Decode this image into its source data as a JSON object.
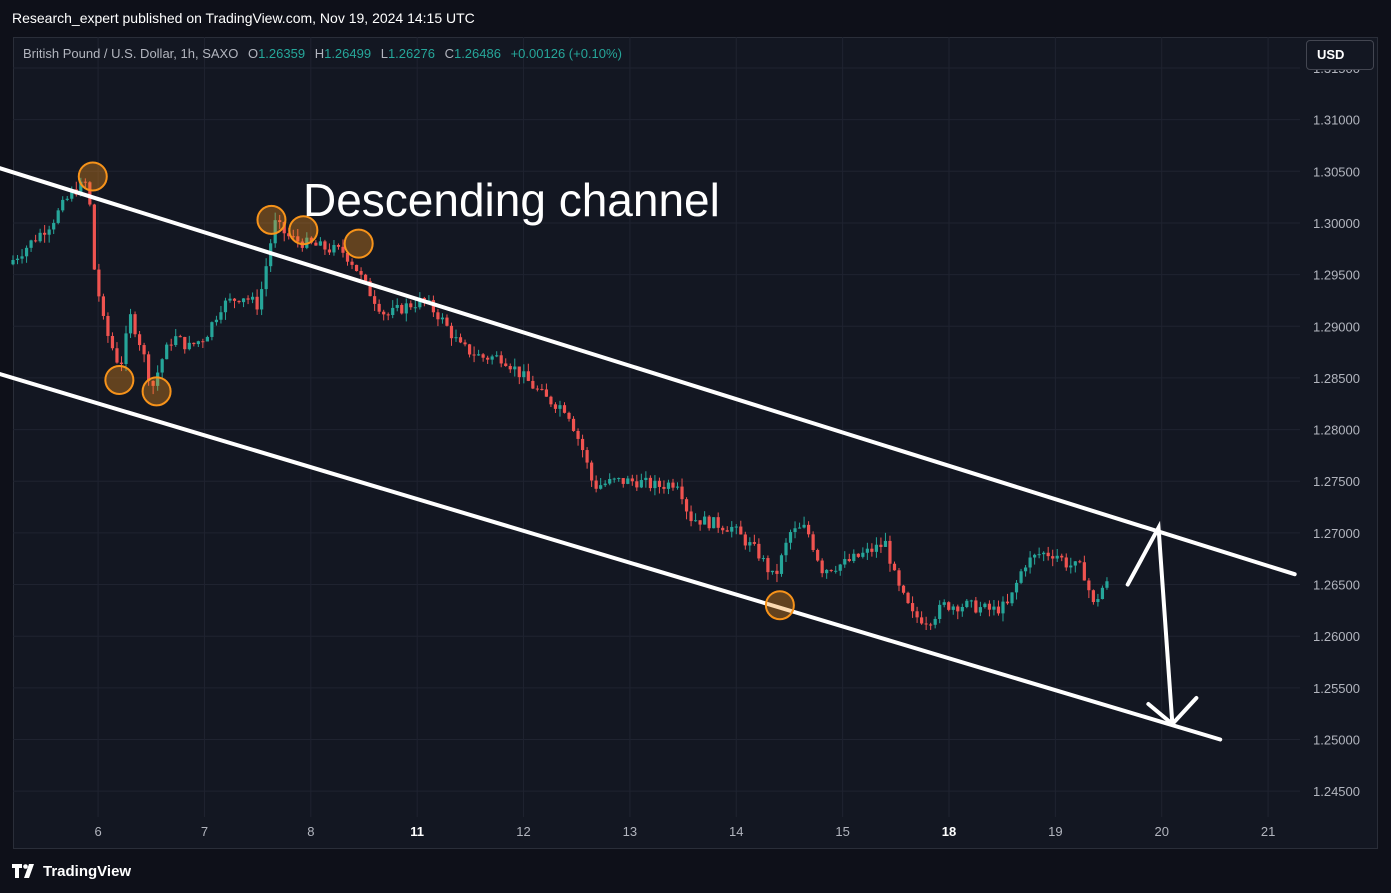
{
  "header": {
    "published": "Research_expert published on TradingView.com, Nov 19, 2024 14:15 UTC"
  },
  "legend": {
    "symbol": "British Pound / U.S. Dollar, 1h, SAXO",
    "o_label": "O",
    "o_value": "1.26359",
    "h_label": "H",
    "h_value": "1.26499",
    "l_label": "L",
    "l_value": "1.26276",
    "c_label": "C",
    "c_value": "1.26486",
    "change": "+0.00126 (+0.10%)"
  },
  "currency_button": "USD",
  "footer": {
    "logo_text": "TradingView"
  },
  "colors": {
    "background": "#131722",
    "grid": "#1f2330",
    "up": "#26a69a",
    "down": "#ef5350",
    "channel": "#ffffff",
    "marker": "#f7931a"
  },
  "chart_data": {
    "type": "candlestick",
    "symbol": "GBPUSD",
    "interval": "1h",
    "annotation": "Descending channel",
    "y_ticks": [
      "1.31500",
      "1.31000",
      "1.30500",
      "1.30000",
      "1.29500",
      "1.29000",
      "1.28500",
      "1.28000",
      "1.27500",
      "1.27000",
      "1.26500",
      "1.26000",
      "1.25500",
      "1.25000",
      "1.24500"
    ],
    "y_tick_values": [
      1.315,
      1.31,
      1.305,
      1.3,
      1.295,
      1.29,
      1.285,
      1.28,
      1.275,
      1.27,
      1.265,
      1.26,
      1.255,
      1.25,
      1.245
    ],
    "x_ticks": [
      "6",
      "7",
      "8",
      "11",
      "12",
      "13",
      "14",
      "15",
      "18",
      "19",
      "20",
      "21"
    ],
    "x_tick_positions": [
      6,
      7,
      8,
      9,
      10,
      11,
      12,
      13,
      14,
      15,
      16,
      17
    ],
    "x_bold": [
      "11",
      "18"
    ],
    "ylim": [
      1.2425,
      1.318
    ],
    "xlim": [
      5.2,
      17.3
    ],
    "price_path": [
      [
        5.2,
        1.296
      ],
      [
        5.4,
        1.298
      ],
      [
        5.6,
        1.3
      ],
      [
        5.8,
        1.303
      ],
      [
        5.95,
        1.304
      ],
      [
        6.0,
        1.296
      ],
      [
        6.1,
        1.29
      ],
      [
        6.25,
        1.286
      ],
      [
        6.35,
        1.291
      ],
      [
        6.45,
        1.288
      ],
      [
        6.55,
        1.284
      ],
      [
        6.65,
        1.287
      ],
      [
        6.75,
        1.289
      ],
      [
        6.9,
        1.288
      ],
      [
        7.05,
        1.289
      ],
      [
        7.2,
        1.292
      ],
      [
        7.4,
        1.293
      ],
      [
        7.55,
        1.292
      ],
      [
        7.7,
        1.3
      ],
      [
        7.85,
        1.2985
      ],
      [
        8.0,
        1.298
      ],
      [
        8.2,
        1.2975
      ],
      [
        8.35,
        1.2972
      ],
      [
        8.45,
        1.296
      ],
      [
        8.55,
        1.294
      ],
      [
        8.75,
        1.291
      ],
      [
        8.95,
        1.292
      ],
      [
        9.1,
        1.2925
      ],
      [
        9.25,
        1.291
      ],
      [
        9.45,
        1.288
      ],
      [
        9.65,
        1.287
      ],
      [
        9.85,
        1.287
      ],
      [
        10.05,
        1.285
      ],
      [
        10.25,
        1.283
      ],
      [
        10.45,
        1.282
      ],
      [
        10.6,
        1.278
      ],
      [
        10.7,
        1.2745
      ],
      [
        10.9,
        1.275
      ],
      [
        11.1,
        1.275
      ],
      [
        11.3,
        1.2745
      ],
      [
        11.5,
        1.275
      ],
      [
        11.6,
        1.2715
      ],
      [
        11.8,
        1.271
      ],
      [
        12.0,
        1.2705
      ],
      [
        12.25,
        1.268
      ],
      [
        12.4,
        1.2655
      ],
      [
        12.55,
        1.27
      ],
      [
        12.7,
        1.2705
      ],
      [
        12.85,
        1.2665
      ],
      [
        13.05,
        1.267
      ],
      [
        13.25,
        1.268
      ],
      [
        13.45,
        1.269
      ],
      [
        13.55,
        1.265
      ],
      [
        13.7,
        1.262
      ],
      [
        13.85,
        1.2615
      ],
      [
        14.0,
        1.263
      ],
      [
        14.2,
        1.263
      ],
      [
        14.45,
        1.2625
      ],
      [
        14.6,
        1.263
      ],
      [
        14.75,
        1.267
      ],
      [
        14.9,
        1.268
      ],
      [
        15.05,
        1.268
      ],
      [
        15.15,
        1.267
      ],
      [
        15.3,
        1.2665
      ],
      [
        15.4,
        1.263
      ],
      [
        15.5,
        1.265
      ]
    ],
    "channel_upper": [
      [
        4.55,
        1.307
      ],
      [
        17.25,
        1.266
      ]
    ],
    "channel_lower": [
      [
        4.55,
        1.287
      ],
      [
        16.55,
        1.25
      ]
    ],
    "touch_points": [
      [
        5.95,
        1.3045
      ],
      [
        6.2,
        1.2848
      ],
      [
        6.55,
        1.2837
      ],
      [
        7.63,
        1.3003
      ],
      [
        7.93,
        1.2993
      ],
      [
        8.45,
        1.298
      ],
      [
        12.41,
        1.263
      ]
    ],
    "projection": [
      [
        15.68,
        1.265
      ],
      [
        15.97,
        1.2705
      ],
      [
        16.1,
        1.2515
      ]
    ]
  }
}
